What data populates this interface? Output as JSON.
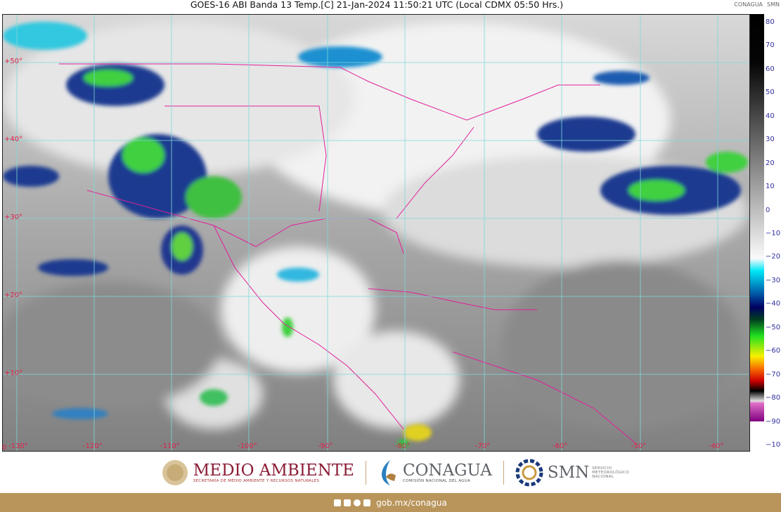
{
  "header": {
    "title": "GOES-16 ABI Banda 13 Temp.[C] 21-Jan-2024 11:50:21 UTC (Local CDMX  05:50 Hrs.)",
    "logo_conagua": "CONAGUA",
    "logo_smn": "SMN"
  },
  "map": {
    "lat_labels": [
      "+50°",
      "+40°",
      "+30°",
      "+20°",
      "+10°",
      "0"
    ],
    "lon_labels": [
      "-130°",
      "-120°",
      "-110°",
      "-100°",
      "-90°",
      "-80°",
      "-70°",
      "-60°",
      "-50°",
      "-40°"
    ],
    "grid_color": "#7fd8d8",
    "border_color": "#e0209a"
  },
  "colorbar": {
    "ticks": [
      "80",
      "70",
      "60",
      "50",
      "40",
      "30",
      "20",
      "10",
      "0",
      "−10",
      "−20",
      "−30",
      "−40",
      "−50",
      "−60",
      "−70",
      "−80",
      "−90",
      "−100"
    ],
    "range": [
      -100,
      80
    ],
    "unit": "C"
  },
  "footer": {
    "semarnat_title": "MEDIO AMBIENTE",
    "semarnat_subtitle": "SECRETARÍA DE MEDIO AMBIENTE Y RECURSOS NATURALES",
    "conagua_title": "CONAGUA",
    "conagua_subtitle": "COMISIÓN NACIONAL DEL AGUA",
    "smn_title": "SMN",
    "smn_subtitle": "SERVICIO METEOROLÓGICO NACIONAL",
    "social_icons": [
      "facebook-icon",
      "twitter-icon",
      "instagram-icon",
      "youtube-icon"
    ],
    "url": "gob.mx/conagua",
    "bar_color": "#b9955b"
  }
}
